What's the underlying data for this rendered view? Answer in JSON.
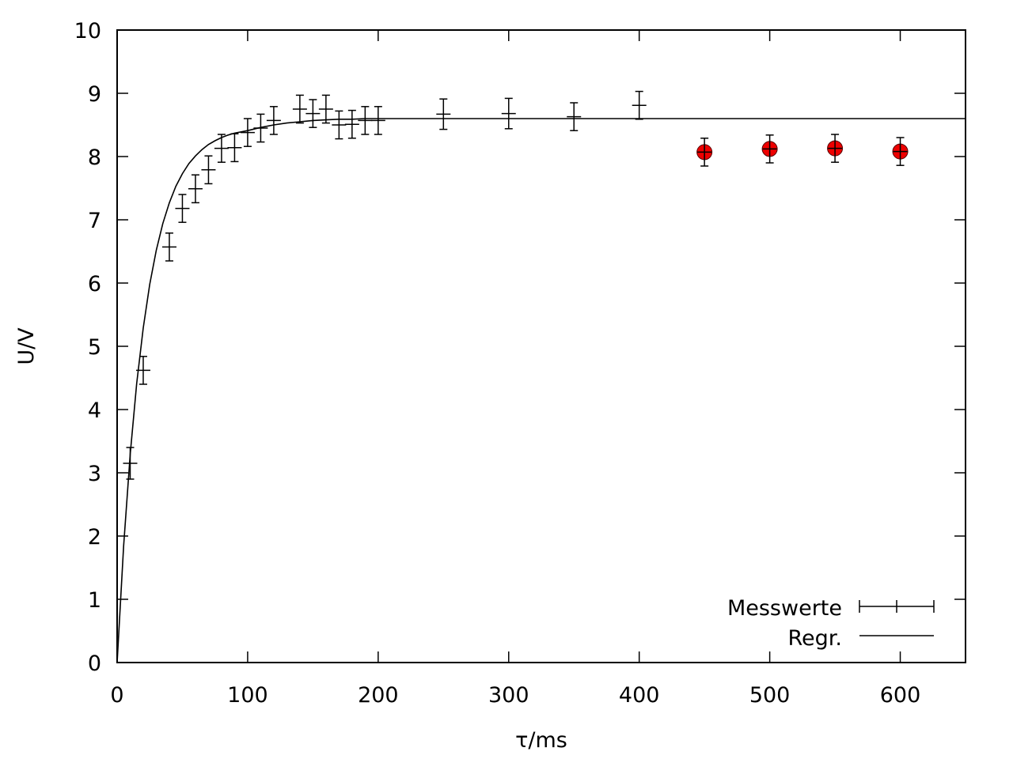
{
  "chart_data": {
    "type": "scatter",
    "title": "",
    "xlabel": "τ/ms",
    "ylabel": "U/V",
    "xlim": [
      0,
      650
    ],
    "ylim": [
      0,
      10
    ],
    "xticks": [
      0,
      100,
      200,
      300,
      400,
      500,
      600
    ],
    "yticks": [
      0,
      1,
      2,
      3,
      4,
      5,
      6,
      7,
      8,
      9,
      10
    ],
    "grid": false,
    "legend_position": "bottom-right",
    "series": [
      {
        "name": "Messwerte",
        "kind": "points-with-errorbars",
        "color": "#000000",
        "points": [
          {
            "x": 10,
            "y": 3.15,
            "err": 0.25
          },
          {
            "x": 20,
            "y": 4.62,
            "err": 0.22
          },
          {
            "x": 40,
            "y": 6.57,
            "err": 0.22
          },
          {
            "x": 50,
            "y": 7.18,
            "err": 0.22
          },
          {
            "x": 60,
            "y": 7.49,
            "err": 0.22
          },
          {
            "x": 70,
            "y": 7.79,
            "err": 0.22
          },
          {
            "x": 80,
            "y": 8.13,
            "err": 0.22
          },
          {
            "x": 90,
            "y": 8.14,
            "err": 0.22
          },
          {
            "x": 100,
            "y": 8.38,
            "err": 0.22
          },
          {
            "x": 110,
            "y": 8.45,
            "err": 0.22
          },
          {
            "x": 120,
            "y": 8.57,
            "err": 0.22
          },
          {
            "x": 140,
            "y": 8.75,
            "err": 0.22
          },
          {
            "x": 150,
            "y": 8.68,
            "err": 0.22
          },
          {
            "x": 160,
            "y": 8.75,
            "err": 0.22
          },
          {
            "x": 170,
            "y": 8.5,
            "err": 0.22
          },
          {
            "x": 180,
            "y": 8.51,
            "err": 0.22
          },
          {
            "x": 190,
            "y": 8.57,
            "err": 0.22
          },
          {
            "x": 200,
            "y": 8.57,
            "err": 0.22
          },
          {
            "x": 250,
            "y": 8.67,
            "err": 0.24
          },
          {
            "x": 300,
            "y": 8.68,
            "err": 0.24
          },
          {
            "x": 350,
            "y": 8.63,
            "err": 0.22
          },
          {
            "x": 400,
            "y": 8.81,
            "err": 0.22
          }
        ]
      },
      {
        "name": "",
        "kind": "highlighted-points-with-errorbars",
        "color": "#ee0000",
        "points": [
          {
            "x": 450,
            "y": 8.07,
            "err": 0.22
          },
          {
            "x": 500,
            "y": 8.12,
            "err": 0.22
          },
          {
            "x": 550,
            "y": 8.13,
            "err": 0.22
          },
          {
            "x": 600,
            "y": 8.08,
            "err": 0.22
          }
        ]
      },
      {
        "name": "Regr.",
        "kind": "line",
        "color": "#000000",
        "x": [
          0,
          5,
          10,
          15,
          20,
          25,
          30,
          35,
          40,
          45,
          50,
          55,
          60,
          65,
          70,
          75,
          80,
          85,
          90,
          95,
          100,
          110,
          120,
          130,
          140,
          150,
          160,
          170,
          180,
          190,
          200,
          220,
          250,
          300,
          350,
          400,
          450,
          500,
          550,
          600,
          650
        ],
        "y": [
          0,
          1.84,
          3.29,
          4.41,
          5.29,
          5.98,
          6.52,
          6.94,
          7.27,
          7.53,
          7.73,
          7.89,
          8.01,
          8.11,
          8.19,
          8.25,
          8.3,
          8.34,
          8.37,
          8.39,
          8.41,
          8.46,
          8.5,
          8.53,
          8.55,
          8.57,
          8.58,
          8.59,
          8.59,
          8.6,
          8.6,
          8.6,
          8.6,
          8.6,
          8.6,
          8.6,
          8.6,
          8.6,
          8.6,
          8.6,
          8.6
        ]
      }
    ]
  }
}
